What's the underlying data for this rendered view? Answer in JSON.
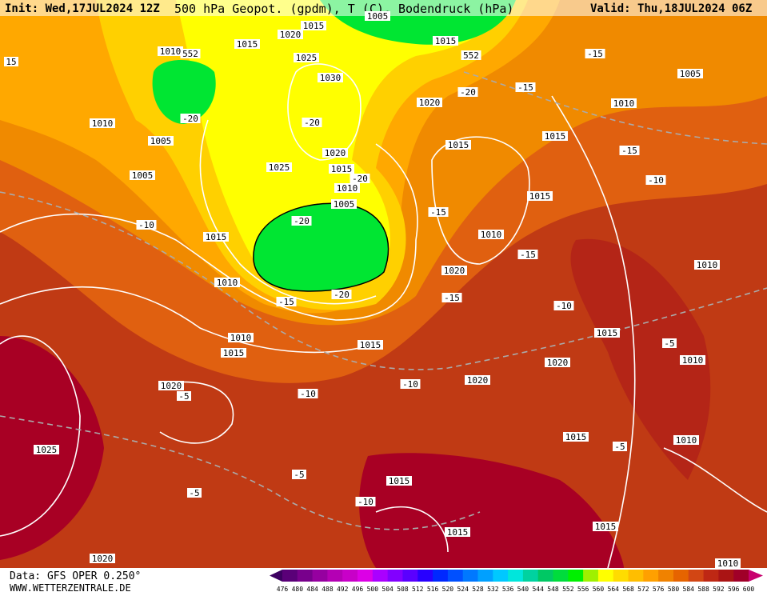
{
  "header": {
    "init": "Init: Wed,17JUL2024 12Z",
    "title": "500 hPa Geopot. (gpdm), T (C), Bodendruck (hPa)",
    "valid": "Valid: Thu,18JUL2024 06Z"
  },
  "footer": {
    "source": "Data: GFS OPER 0.250°",
    "site": "WWW.WETTERZENTRALE.DE"
  },
  "map_labels": [
    "1005",
    "1020",
    "1015",
    "1015",
    "1010",
    "552",
    "1025",
    "1015",
    "552",
    "1030",
    "1020",
    "-20",
    "-15",
    "-15",
    "1005",
    "1010",
    "1010",
    "-20",
    "-20",
    "1005",
    "1020",
    "1015",
    "1015",
    "-15",
    "1025",
    "1015",
    "-20",
    "1005",
    "1010",
    "-10",
    "1005",
    "1015",
    "-15",
    "-20",
    "-10",
    "1010",
    "1015",
    "-15",
    "1010",
    "1020",
    "1010",
    "-15",
    "-20",
    "-15",
    "-10",
    "1015",
    "1010",
    "1015",
    "-5",
    "1015",
    "1020",
    "1010",
    "1020",
    "-5",
    "-10",
    "-10",
    "1020",
    "1015",
    "1010",
    "-5",
    "1025",
    "-5",
    "-5",
    "1015",
    "-10",
    "1015",
    "1015",
    "1020",
    "1010",
    "15"
  ],
  "legend": {
    "labels": [
      "476",
      "480",
      "484",
      "488",
      "492",
      "496",
      "500",
      "504",
      "508",
      "512",
      "516",
      "520",
      "524",
      "528",
      "532",
      "536",
      "540",
      "544",
      "548",
      "552",
      "556",
      "560",
      "564",
      "568",
      "572",
      "576",
      "580",
      "584",
      "588",
      "592",
      "596",
      "600"
    ],
    "colors": [
      "#3c0060",
      "#5a0078",
      "#78008c",
      "#9600a0",
      "#b400b4",
      "#c800c8",
      "#dc00e6",
      "#aa00ff",
      "#8200ff",
      "#5a00ff",
      "#2800ff",
      "#0028ff",
      "#0050ff",
      "#0078ff",
      "#00a0ff",
      "#00c8ff",
      "#00e6dc",
      "#00d2a0",
      "#00c864",
      "#00dc3c",
      "#00f000",
      "#a0f000",
      "#ffff00",
      "#ffdc00",
      "#ffbe00",
      "#ffa000",
      "#f08200",
      "#e66400",
      "#d24614",
      "#be2814",
      "#aa1414",
      "#a00028",
      "#c8006e"
    ]
  }
}
